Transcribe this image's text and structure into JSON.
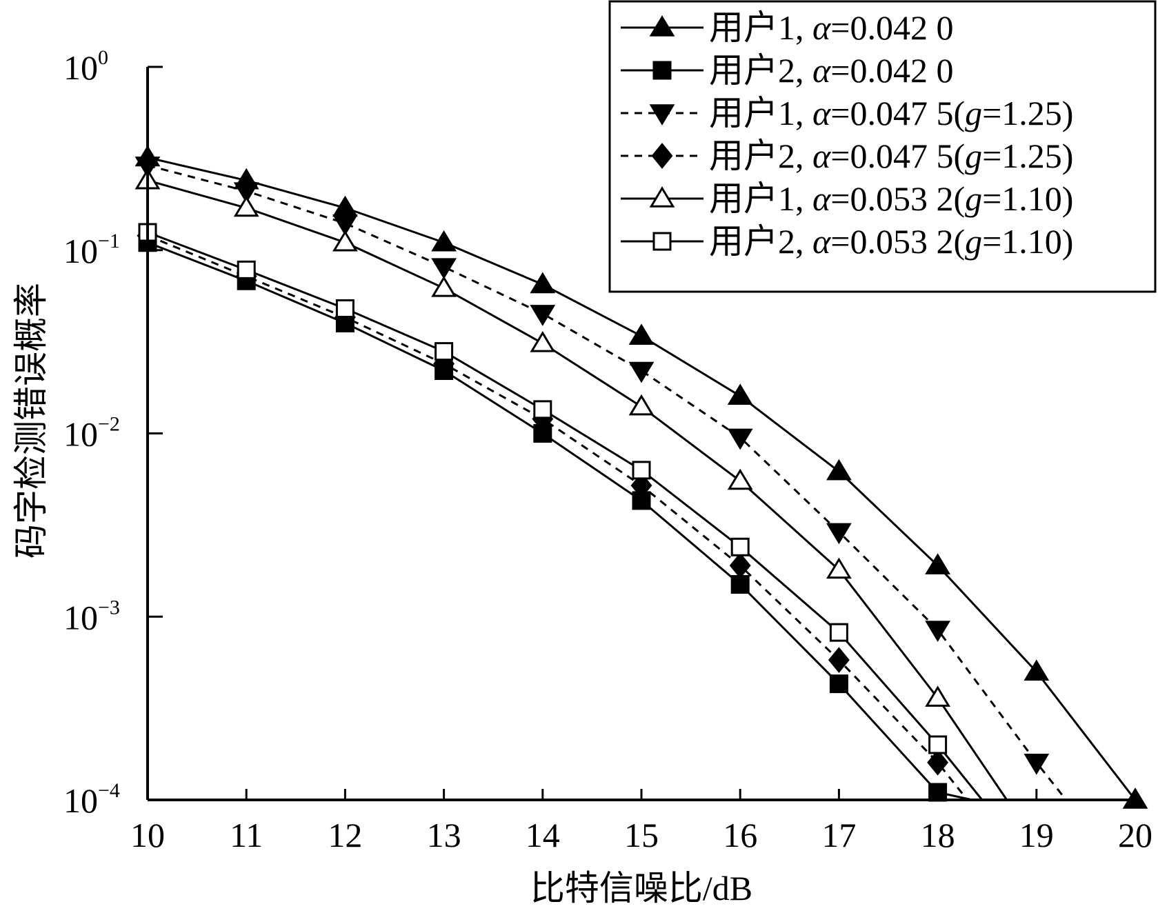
{
  "chart_data": {
    "type": "line",
    "title": "",
    "xlabel": "比特信噪比/dB",
    "ylabel": "码字检测错误概率",
    "y_scale": "log",
    "xlim": [
      10,
      20
    ],
    "ylim": [
      0.0001,
      1
    ],
    "x_ticks": [
      "10",
      "11",
      "12",
      "13",
      "14",
      "15",
      "16",
      "17",
      "18",
      "19",
      "20"
    ],
    "y_ticks": [
      {
        "value": 1,
        "mantissa": "10",
        "exp": "0"
      },
      {
        "value": 0.1,
        "mantissa": "10",
        "exp": "−1"
      },
      {
        "value": 0.01,
        "mantissa": "10",
        "exp": "−2"
      },
      {
        "value": 0.001,
        "mantissa": "10",
        "exp": "−3"
      },
      {
        "value": 0.0001,
        "mantissa": "10",
        "exp": "−4"
      }
    ],
    "grid": false,
    "legend_position": "top-right",
    "series": [
      {
        "legend_parts": [
          "用户1, ",
          "α",
          "=0.042 0"
        ],
        "marker": "triangle-up-filled",
        "dash": "solid",
        "x": [
          10,
          11,
          12,
          13,
          14,
          15,
          16,
          17,
          18,
          19,
          20
        ],
        "y": [
          0.32,
          0.24,
          0.17,
          0.11,
          0.065,
          0.034,
          0.016,
          0.0062,
          0.0019,
          0.0005,
          0.0001
        ]
      },
      {
        "legend_parts": [
          "用户2, ",
          "α",
          "=0.042 0"
        ],
        "marker": "square-filled",
        "dash": "solid",
        "x": [
          10,
          11,
          12,
          13,
          14,
          15,
          16,
          17,
          18,
          18.35
        ],
        "y": [
          0.11,
          0.068,
          0.04,
          0.022,
          0.01,
          0.0043,
          0.0015,
          0.00043,
          0.00011,
          0.0001
        ]
      },
      {
        "legend_parts": [
          "用户1, ",
          "α",
          "=0.047 5(",
          "g",
          "=1.25)"
        ],
        "marker": "triangle-down-filled",
        "dash": "dashed",
        "x": [
          10,
          11,
          12,
          13,
          14,
          15,
          16,
          17,
          18,
          19,
          19.3
        ],
        "y": [
          0.29,
          0.21,
          0.14,
          0.081,
          0.045,
          0.022,
          0.0095,
          0.0029,
          0.00085,
          0.00016,
          0.0001
        ]
      },
      {
        "legend_parts": [
          "用户2, ",
          "α",
          "=0.047 5(",
          "g",
          "=1.25)"
        ],
        "marker": "diamond-filled",
        "dash": "dashed",
        "x": [
          10,
          11,
          12,
          13,
          14,
          15,
          16,
          17,
          18,
          18.3
        ],
        "y": [
          0.12,
          0.072,
          0.043,
          0.024,
          0.012,
          0.0052,
          0.0019,
          0.00058,
          0.00016,
          0.0001
        ]
      },
      {
        "legend_parts": [
          "用户1, ",
          "α",
          "=0.053 2(",
          "g",
          "=1.10)"
        ],
        "marker": "triangle-up-open",
        "dash": "solid",
        "x": [
          10,
          11,
          12,
          13,
          14,
          15,
          16,
          17,
          18,
          18.7
        ],
        "y": [
          0.24,
          0.17,
          0.11,
          0.062,
          0.031,
          0.014,
          0.0055,
          0.0018,
          0.00036,
          0.0001
        ]
      },
      {
        "legend_parts": [
          "用户2, ",
          "α",
          "=0.053 2(",
          "g",
          "=1.10)"
        ],
        "marker": "square-open",
        "dash": "solid",
        "x": [
          10,
          11,
          12,
          13,
          14,
          15,
          16,
          17,
          18,
          18.45
        ],
        "y": [
          0.125,
          0.078,
          0.048,
          0.028,
          0.0135,
          0.0063,
          0.0024,
          0.00082,
          0.0002,
          0.0001
        ]
      }
    ]
  }
}
